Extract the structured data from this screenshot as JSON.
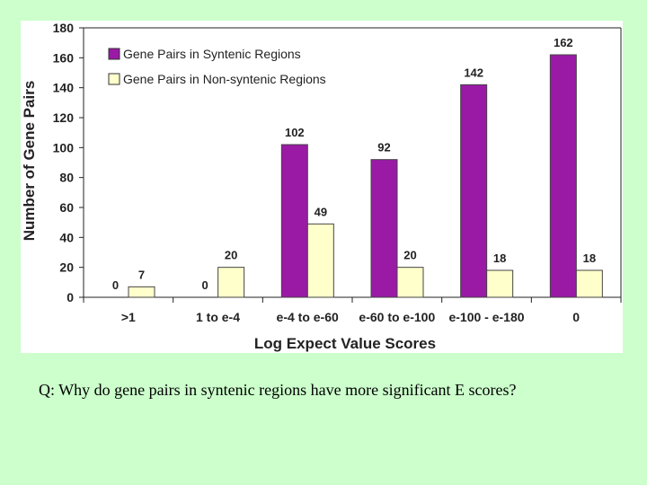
{
  "chart_data": {
    "type": "bar",
    "categories": [
      ">1",
      "1 to e-4",
      "e-4 to e-60",
      "e-60 to e-100",
      "e-100 - e-180",
      "0"
    ],
    "series": [
      {
        "name": "Gene Pairs in Syntenic Regions",
        "values": [
          0,
          0,
          102,
          92,
          142,
          162
        ],
        "color": "#9a1aa6"
      },
      {
        "name": "Gene Pairs in Non-syntenic Regions",
        "values": [
          7,
          20,
          49,
          20,
          18,
          18
        ],
        "color": "#ffffcc"
      }
    ],
    "xlabel": "Log Expect Value Scores",
    "ylabel": "Number of Gene Pairs",
    "ylim": [
      0,
      180
    ],
    "yticks": [
      0,
      20,
      40,
      60,
      80,
      100,
      120,
      140,
      160,
      180
    ],
    "legend_position": "top-left",
    "grid": false
  },
  "question": "Q: Why do gene pairs in syntenic regions have more significant E scores?"
}
